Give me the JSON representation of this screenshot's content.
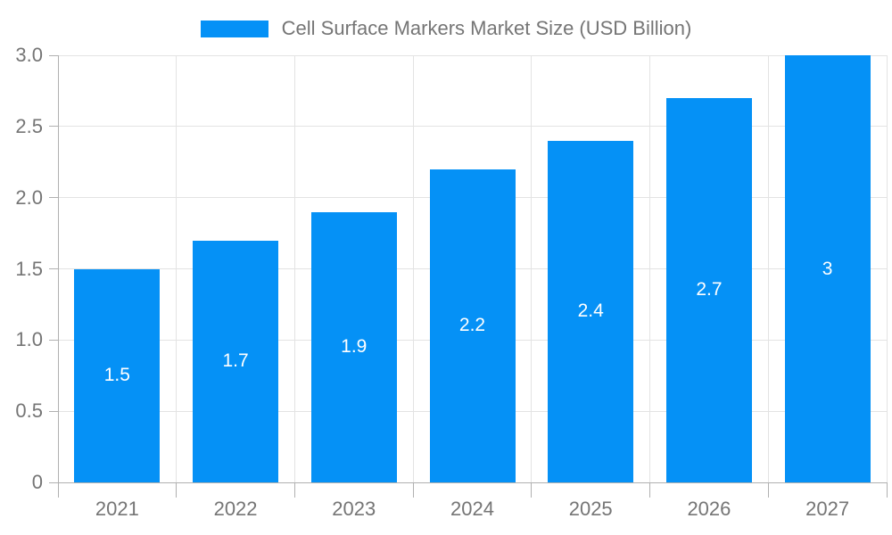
{
  "chart_data": {
    "type": "bar",
    "title": "Cell Surface Markers Market Size (USD Billion)",
    "categories": [
      "2021",
      "2022",
      "2023",
      "2024",
      "2025",
      "2026",
      "2027"
    ],
    "values": [
      1.5,
      1.7,
      1.9,
      2.2,
      2.4,
      2.7,
      3
    ],
    "bar_labels": [
      "1.5",
      "1.7",
      "1.9",
      "2.2",
      "2.4",
      "2.7",
      "3"
    ],
    "xlabel": "",
    "ylabel": "",
    "ylim": [
      0,
      3
    ],
    "yticks": [
      0,
      0.5,
      1,
      1.5,
      2,
      2.5,
      3
    ],
    "ytick_labels": [
      "0",
      "0.5",
      "1.0",
      "1.5",
      "2.0",
      "2.5",
      "3.0"
    ],
    "grid": true,
    "legend_position": "top-center",
    "colors": {
      "bar": "#0591f6",
      "bar_label_text": "#ffffff",
      "axis_text": "#757575",
      "axis_line": "#b0b0b0",
      "gridline": "#e3e3e3",
      "background": "#ffffff"
    }
  }
}
